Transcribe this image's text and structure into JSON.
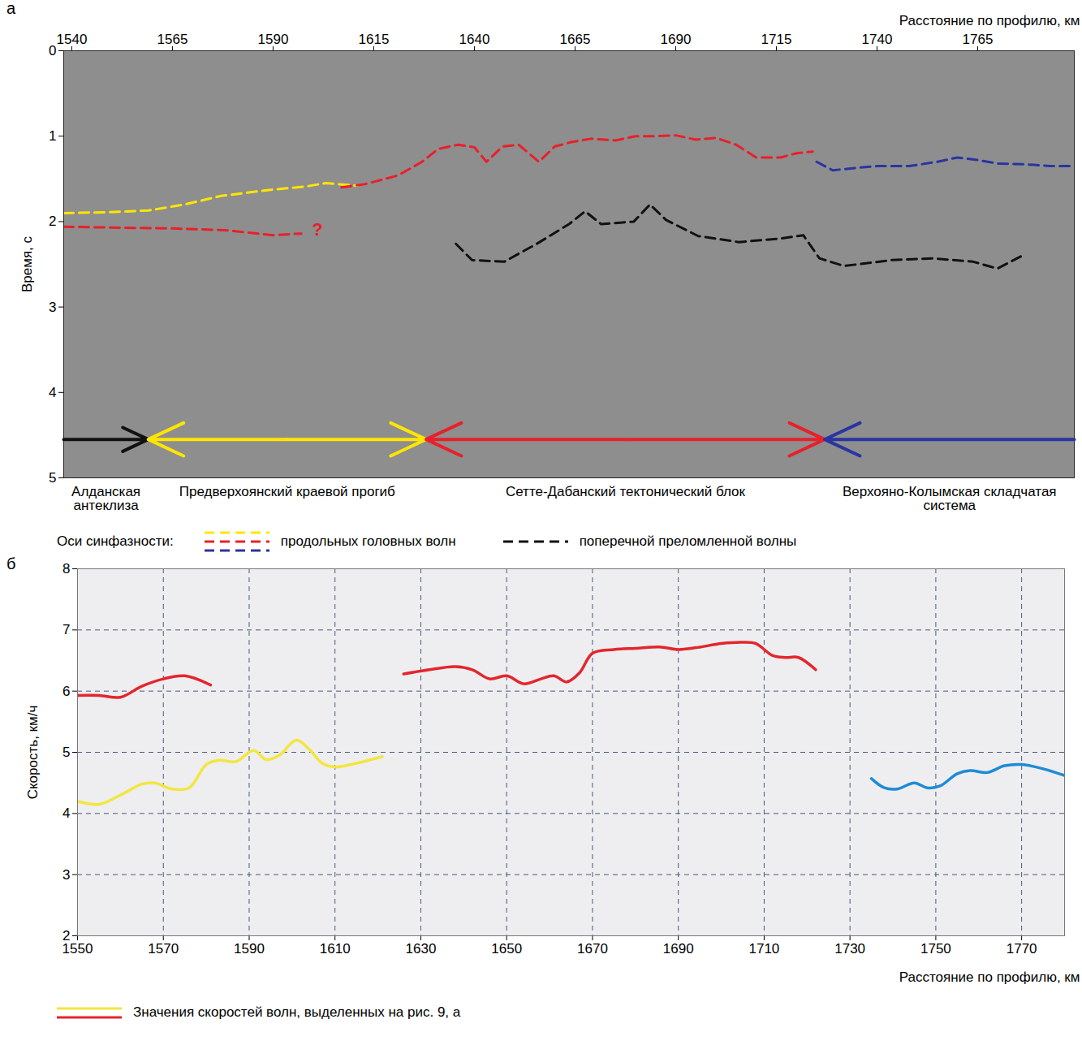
{
  "chart_data": [
    {
      "type": "seismic_section",
      "panel": "а",
      "x_label": "Расстояние по профилю, км",
      "y_label": "Время, с",
      "xlim": [
        1538,
        1789
      ],
      "xticks": [
        1540,
        1565,
        1590,
        1615,
        1640,
        1665,
        1690,
        1715,
        1740,
        1765
      ],
      "ylim": [
        0,
        5
      ],
      "yticks": [
        0,
        1,
        2,
        3,
        4,
        5
      ],
      "legend": "bottom",
      "legend_title": "Оси синфазности:",
      "series": [
        {
          "name": "продольных головных волн",
          "color": "#ffe600",
          "line_style": "dashed",
          "x": [
            1538,
            1549,
            1559,
            1568,
            1577,
            1589,
            1598,
            1603,
            1611
          ],
          "values": [
            1.9,
            1.89,
            1.87,
            1.8,
            1.7,
            1.63,
            1.59,
            1.55,
            1.58
          ]
        },
        {
          "name": "продольных головных волн",
          "color": "#e8202a",
          "line_style": "dashed",
          "x": [
            1607,
            1613,
            1621,
            1627,
            1631,
            1636,
            1640,
            1643,
            1647,
            1651,
            1656,
            1660,
            1664,
            1669,
            1675,
            1680,
            1685,
            1690,
            1695,
            1700,
            1705,
            1710,
            1716,
            1720,
            1724
          ],
          "values": [
            1.6,
            1.56,
            1.46,
            1.3,
            1.15,
            1.1,
            1.13,
            1.3,
            1.12,
            1.1,
            1.3,
            1.12,
            1.07,
            1.03,
            1.05,
            1.0,
            1.0,
            0.99,
            1.04,
            1.02,
            1.1,
            1.25,
            1.25,
            1.2,
            1.18
          ]
        },
        {
          "name": "продольных головных волн",
          "color": "#2a35a0",
          "line_style": "dashed",
          "x": [
            1725,
            1729,
            1733,
            1740,
            1748,
            1755,
            1760,
            1765,
            1770,
            1777,
            1783,
            1789
          ],
          "values": [
            1.3,
            1.4,
            1.38,
            1.35,
            1.35,
            1.3,
            1.25,
            1.28,
            1.32,
            1.33,
            1.35,
            1.35
          ]
        },
        {
          "name": "продольных головных волн",
          "color": "#e8202a",
          "line_style": "dashed",
          "x": [
            1538,
            1550,
            1565,
            1578,
            1590,
            1597
          ],
          "values": [
            2.06,
            2.07,
            2.08,
            2.1,
            2.16,
            2.14
          ]
        },
        {
          "name": "поперечной преломленной волны",
          "color": "#111111",
          "line_style": "dashed",
          "x": [
            1635.4,
            1639.4,
            1647.4,
            1655.5,
            1663.5,
            1667.5,
            1671.5,
            1679.6,
            1683.6,
            1687.6,
            1695.6,
            1705.7,
            1715.7,
            1721.7,
            1725.7,
            1731.8,
            1743.8,
            1753.9,
            1763.9,
            1769.9,
            1776
          ],
          "values": [
            2.26,
            2.45,
            2.47,
            2.26,
            2.03,
            1.88,
            2.03,
            2.0,
            1.8,
            1.98,
            2.17,
            2.24,
            2.2,
            2.16,
            2.43,
            2.52,
            2.45,
            2.43,
            2.47,
            2.55,
            2.4
          ]
        }
      ],
      "annotations": [
        {
          "text": "?",
          "x": 1601,
          "y": 2.1,
          "color": "#e8202a"
        }
      ],
      "arrow_y": 4.55,
      "zones": [
        {
          "name": "Алданская антеклиза",
          "from": 1538,
          "to": 1559,
          "color": "#111111",
          "marker": "arrow-end"
        },
        {
          "name": "Предверхоянский краевой прогиб",
          "from": 1559,
          "to": 1628,
          "color": "#ffe600",
          "marker": "arrow-both"
        },
        {
          "name": "Сетте-Дабанский тектонический блок",
          "from": 1628,
          "to": 1727,
          "color": "#e8202a",
          "marker": "arrow-both"
        },
        {
          "name": "Верхояно-Колымская складчатая система",
          "from": 1727,
          "to": 1789,
          "color": "#2a35a0",
          "marker": "arrow-start"
        }
      ]
    },
    {
      "type": "line",
      "panel": "б",
      "x_label": "Расстояние по профилю, км",
      "y_label": "Скорость, км/ч",
      "xlim": [
        1550,
        1780
      ],
      "xticks": [
        1550,
        1570,
        1590,
        1610,
        1630,
        1650,
        1670,
        1690,
        1710,
        1730,
        1750,
        1770
      ],
      "ylim": [
        2,
        8
      ],
      "yticks": [
        2,
        3,
        4,
        5,
        6,
        7,
        8
      ],
      "grid": true,
      "legend": "bottom",
      "series": [
        {
          "name": "Значения скоростей волн, выделенных на рис. 9, а",
          "color": "#f2e640",
          "line_style": "solid",
          "x": [
            1550,
            1555,
            1560,
            1565,
            1568,
            1572,
            1576,
            1580,
            1583,
            1587,
            1591,
            1594,
            1597,
            1601,
            1604,
            1607,
            1610,
            1615,
            1621
          ],
          "values": [
            4.2,
            4.15,
            4.3,
            4.48,
            4.5,
            4.4,
            4.42,
            4.8,
            4.87,
            4.85,
            5.03,
            4.88,
            4.95,
            5.2,
            5.05,
            4.82,
            4.76,
            4.82,
            4.93
          ]
        },
        {
          "name": "Значения скоростей волн, выделенных на рис. 9, а",
          "color": "#e3262d",
          "line_style": "solid",
          "x": [
            1550,
            1555,
            1560,
            1565,
            1570,
            1575,
            1581,
            1602,
            1626,
            1632,
            1638,
            1642,
            1646,
            1650,
            1654,
            1658,
            1661,
            1664,
            1667,
            1670,
            1675,
            1680,
            1686,
            1690,
            1695,
            1700,
            1705,
            1708,
            1712,
            1715,
            1718,
            1722
          ],
          "values": [
            5.93,
            5.93,
            5.9,
            6.08,
            6.2,
            6.25,
            6.1,
            null,
            6.28,
            6.35,
            6.4,
            6.35,
            6.2,
            6.25,
            6.12,
            6.2,
            6.25,
            6.15,
            6.3,
            6.62,
            6.68,
            6.7,
            6.72,
            6.68,
            6.72,
            6.78,
            6.8,
            6.78,
            6.58,
            6.55,
            6.55,
            6.35
          ]
        },
        {
          "color": "#1e8bd6",
          "line_style": "solid",
          "x": [
            1735,
            1738,
            1741,
            1745,
            1748,
            1751,
            1755,
            1758,
            1762,
            1766,
            1770,
            1775,
            1780
          ],
          "values": [
            4.57,
            4.42,
            4.4,
            4.5,
            4.42,
            4.45,
            4.65,
            4.7,
            4.67,
            4.78,
            4.8,
            4.73,
            4.62
          ]
        }
      ]
    }
  ]
}
